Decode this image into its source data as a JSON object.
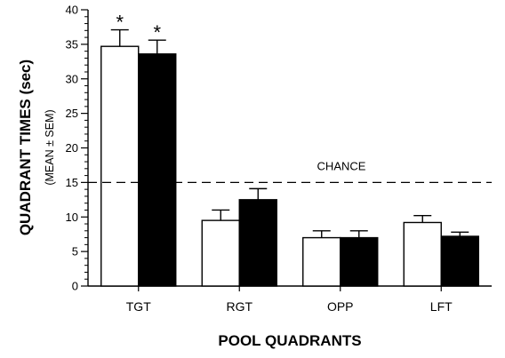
{
  "chart_data": {
    "type": "bar",
    "categories": [
      "TGT",
      "RGT",
      "OPP",
      "LFT"
    ],
    "series": [
      {
        "color": "#ffffff",
        "values": [
          34.7,
          9.5,
          7.0,
          9.2
        ],
        "errors": [
          2.4,
          1.5,
          1.0,
          1.0
        ],
        "significant": [
          true,
          false,
          false,
          false
        ]
      },
      {
        "color": "#000000",
        "values": [
          33.6,
          12.5,
          7.0,
          7.2
        ],
        "errors": [
          2.0,
          1.6,
          1.0,
          0.6
        ],
        "significant": [
          true,
          false,
          false,
          false
        ]
      }
    ],
    "xlabel": "POOL QUADRANTS",
    "ylabel": "QUADRANT TIMES (sec)",
    "ylabel_sub": "(MEAN ± SEM)",
    "ylim": [
      0,
      40
    ],
    "yticks": [
      0,
      5,
      10,
      15,
      20,
      25,
      30,
      35,
      40
    ],
    "minor_tick_step": 1,
    "significance_marker": "*",
    "reference_line": {
      "y": 15,
      "label": "CHANCE",
      "style": "dashed"
    },
    "grid": false,
    "legend": "none"
  }
}
